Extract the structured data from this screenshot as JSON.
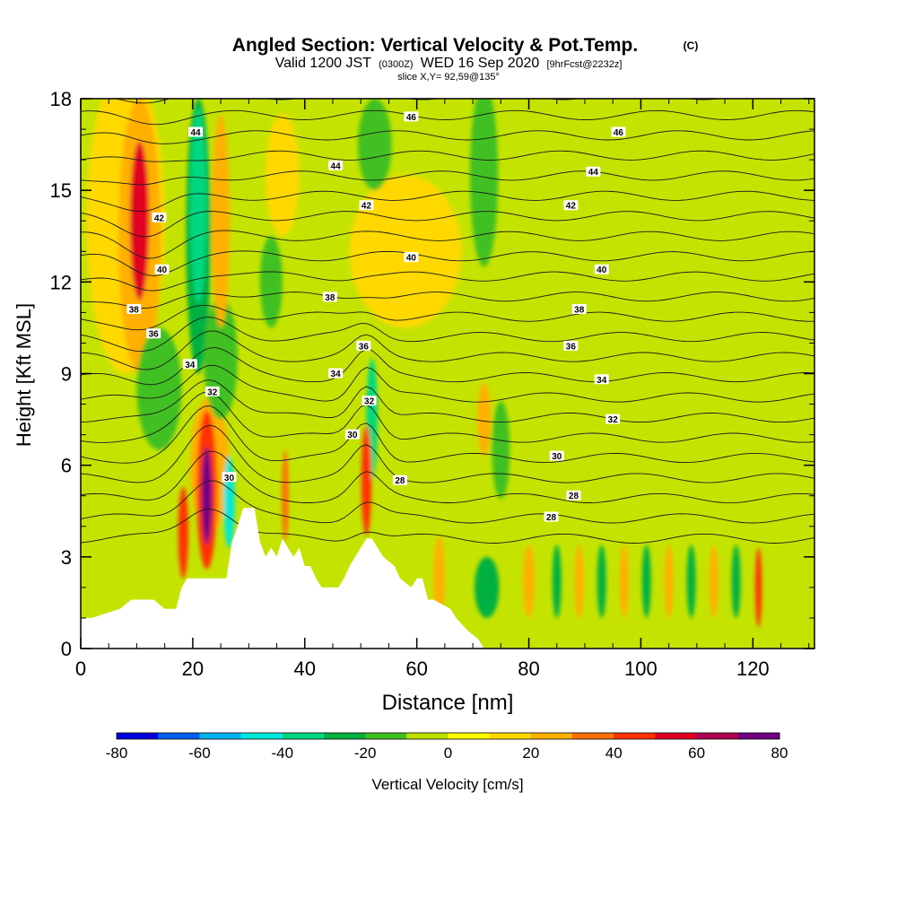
{
  "chart_data": {
    "type": "heatmap",
    "title": "Angled Section: Vertical Velocity & Pot.Temp.",
    "title_unit": "(C)",
    "subtitle_parts": [
      "Valid 1200 JST",
      "(0300Z)",
      "WED 16 Sep 2020",
      "[9hrFcst@2232z]"
    ],
    "subtitle2": "slice X,Y= 92,59@135°",
    "xlabel": "Distance [nm]",
    "ylabel": "Height [Kft MSL]",
    "xlim": [
      0,
      131
    ],
    "ylim": [
      0,
      18
    ],
    "x_ticks": [
      0,
      20,
      40,
      60,
      80,
      100,
      120
    ],
    "y_ticks": [
      0,
      3,
      6,
      9,
      12,
      15,
      18
    ],
    "colorbar": {
      "label": "Vertical Velocity [cm/s]",
      "tick_labels": [
        "-80",
        "-60",
        "-40",
        "-20",
        "0",
        "20",
        "40",
        "60",
        "80"
      ],
      "levels": [
        -80,
        -70,
        -60,
        -50,
        -40,
        -30,
        -20,
        -10,
        0,
        10,
        20,
        30,
        40,
        50,
        60,
        70,
        80
      ],
      "colors": [
        "#0000e0",
        "#0060f0",
        "#00b0f0",
        "#00e8d8",
        "#00d880",
        "#00b040",
        "#40c020",
        "#c0e000",
        "#ffff00",
        "#ffd800",
        "#ffb000",
        "#ff7000",
        "#ff3000",
        "#e00020",
        "#b00050",
        "#700080"
      ]
    },
    "background_color": "#c4e400",
    "terrain": [
      [
        0,
        1
      ],
      [
        2,
        1
      ],
      [
        7,
        1.3
      ],
      [
        9,
        1.6
      ],
      [
        13,
        1.6
      ],
      [
        15,
        1.3
      ],
      [
        17,
        1.3
      ],
      [
        18,
        2
      ],
      [
        19,
        2.3
      ],
      [
        22,
        2.3
      ],
      [
        26,
        2.3
      ],
      [
        27,
        3.5
      ],
      [
        28,
        4
      ],
      [
        29,
        4.6
      ],
      [
        31,
        4.6
      ],
      [
        32,
        3.5
      ],
      [
        33,
        3
      ],
      [
        34,
        3.3
      ],
      [
        35,
        3
      ],
      [
        36,
        3.6
      ],
      [
        37,
        3.3
      ],
      [
        38,
        3
      ],
      [
        39,
        3.3
      ],
      [
        40,
        2.7
      ],
      [
        41,
        2.7
      ],
      [
        42,
        2.3
      ],
      [
        43,
        2
      ],
      [
        44,
        2
      ],
      [
        46,
        2
      ],
      [
        47,
        2.3
      ],
      [
        48,
        2.7
      ],
      [
        49,
        3
      ],
      [
        50,
        3.3
      ],
      [
        51,
        3.6
      ],
      [
        52,
        3.6
      ],
      [
        53,
        3.3
      ],
      [
        54,
        3
      ],
      [
        56,
        2.7
      ],
      [
        57,
        2.3
      ],
      [
        59,
        2
      ],
      [
        60,
        2.3
      ],
      [
        61,
        2.3
      ],
      [
        62,
        1.6
      ],
      [
        63,
        1.6
      ],
      [
        66,
        1.3
      ],
      [
        67,
        1
      ],
      [
        69,
        0.6
      ],
      [
        71,
        0.3
      ],
      [
        72,
        0
      ]
    ],
    "features": [
      {
        "x": 10.5,
        "y": 14,
        "rx": 1.7,
        "ry": 2.6,
        "v": 50
      },
      {
        "x": 10.5,
        "y": 13.5,
        "rx": 3.8,
        "ry": 4.5,
        "v": 28
      },
      {
        "x": 8,
        "y": 14,
        "rx": 7,
        "ry": 5,
        "v": 12
      },
      {
        "x": 21,
        "y": 14.5,
        "rx": 1.5,
        "ry": 3.2,
        "v": -40
      },
      {
        "x": 21,
        "y": 13.5,
        "rx": 2.2,
        "ry": 4.5,
        "v": -22
      },
      {
        "x": 25,
        "y": 14,
        "rx": 1.6,
        "ry": 3.5,
        "v": 25
      },
      {
        "x": 22.5,
        "y": 5,
        "rx": 0.9,
        "ry": 1.6,
        "v": 70
      },
      {
        "x": 22.5,
        "y": 5.2,
        "rx": 1.8,
        "ry": 2.6,
        "v": 45
      },
      {
        "x": 23,
        "y": 6,
        "rx": 3.5,
        "ry": 2.2,
        "v": 25
      },
      {
        "x": 18.3,
        "y": 3.8,
        "rx": 0.9,
        "ry": 1.5,
        "v": 45
      },
      {
        "x": 26.5,
        "y": 4.8,
        "rx": 1,
        "ry": 1.5,
        "v": -45
      },
      {
        "x": 51,
        "y": 5.5,
        "rx": 0.9,
        "ry": 1.8,
        "v": 45
      },
      {
        "x": 52,
        "y": 7.5,
        "rx": 1,
        "ry": 2,
        "v": -40
      },
      {
        "x": 36.5,
        "y": 5,
        "rx": 0.6,
        "ry": 1.5,
        "v": 35
      },
      {
        "x": 14,
        "y": 8.5,
        "rx": 4,
        "ry": 2,
        "v": -15
      },
      {
        "x": 25,
        "y": 9.5,
        "rx": 3,
        "ry": 2,
        "v": -12
      },
      {
        "x": 34,
        "y": 12,
        "rx": 2,
        "ry": 1.5,
        "v": -15
      },
      {
        "x": 72.5,
        "y": 2,
        "rx": 2.2,
        "ry": 1,
        "v": -25
      },
      {
        "x": 75,
        "y": 6.5,
        "rx": 1.6,
        "ry": 1.6,
        "v": -12
      },
      {
        "x": 72,
        "y": 7.5,
        "rx": 1.2,
        "ry": 1.2,
        "v": 22
      },
      {
        "x": 58,
        "y": 13,
        "rx": 10,
        "ry": 2.5,
        "v": 12
      },
      {
        "x": 72,
        "y": 15.5,
        "rx": 2.5,
        "ry": 3,
        "v": -12
      },
      {
        "x": 52.5,
        "y": 16.5,
        "rx": 3,
        "ry": 1.5,
        "v": -15
      },
      {
        "x": 36,
        "y": 15.5,
        "rx": 3,
        "ry": 2,
        "v": 15
      },
      {
        "x": 85,
        "y": 2.2,
        "rx": 0.8,
        "ry": 1.2,
        "v": -22
      },
      {
        "x": 89,
        "y": 2.2,
        "rx": 0.8,
        "ry": 1.2,
        "v": 22
      },
      {
        "x": 93,
        "y": 2.2,
        "rx": 0.8,
        "ry": 1.2,
        "v": -22
      },
      {
        "x": 97,
        "y": 2.2,
        "rx": 0.8,
        "ry": 1.2,
        "v": 22
      },
      {
        "x": 101,
        "y": 2.2,
        "rx": 0.8,
        "ry": 1.2,
        "v": -22
      },
      {
        "x": 105,
        "y": 2.2,
        "rx": 0.8,
        "ry": 1.2,
        "v": 22
      },
      {
        "x": 109,
        "y": 2.2,
        "rx": 0.8,
        "ry": 1.2,
        "v": -22
      },
      {
        "x": 113,
        "y": 2.2,
        "rx": 0.8,
        "ry": 1.2,
        "v": 22
      },
      {
        "x": 117,
        "y": 2.2,
        "rx": 0.8,
        "ry": 1.2,
        "v": -22
      },
      {
        "x": 121,
        "y": 2,
        "rx": 0.6,
        "ry": 1.3,
        "v": 45
      },
      {
        "x": 64,
        "y": 2.3,
        "rx": 1,
        "ry": 1.4,
        "v": 22
      },
      {
        "x": 80,
        "y": 2.2,
        "rx": 1,
        "ry": 1.2,
        "v": 22
      }
    ],
    "isentrope_levels": [
      24,
      25,
      26,
      27,
      28,
      29,
      30,
      31,
      32,
      33,
      34,
      35,
      36,
      37,
      38,
      39,
      40,
      41,
      42,
      43,
      44,
      45,
      46,
      47
    ],
    "contour_labels": [
      {
        "text": "44",
        "x": 20.5,
        "y": 16.9
      },
      {
        "text": "46",
        "x": 59,
        "y": 17.4
      },
      {
        "text": "46",
        "x": 96,
        "y": 16.9
      },
      {
        "text": "44",
        "x": 45.5,
        "y": 15.8
      },
      {
        "text": "44",
        "x": 91.5,
        "y": 15.6
      },
      {
        "text": "42",
        "x": 14,
        "y": 14.1
      },
      {
        "text": "42",
        "x": 51,
        "y": 14.5
      },
      {
        "text": "42",
        "x": 87.5,
        "y": 14.5
      },
      {
        "text": "40",
        "x": 14.5,
        "y": 12.4
      },
      {
        "text": "40",
        "x": 59,
        "y": 12.8
      },
      {
        "text": "40",
        "x": 93,
        "y": 12.4
      },
      {
        "text": "38",
        "x": 9.5,
        "y": 11.1
      },
      {
        "text": "38",
        "x": 44.5,
        "y": 11.5
      },
      {
        "text": "38",
        "x": 89,
        "y": 11.1
      },
      {
        "text": "36",
        "x": 13,
        "y": 10.3
      },
      {
        "text": "36",
        "x": 50.5,
        "y": 9.9
      },
      {
        "text": "36",
        "x": 87.5,
        "y": 9.9
      },
      {
        "text": "34",
        "x": 19.5,
        "y": 9.3
      },
      {
        "text": "34",
        "x": 45.5,
        "y": 9
      },
      {
        "text": "34",
        "x": 93,
        "y": 8.8
      },
      {
        "text": "32",
        "x": 23.5,
        "y": 8.4
      },
      {
        "text": "32",
        "x": 51.5,
        "y": 8.1
      },
      {
        "text": "32",
        "x": 95,
        "y": 7.5
      },
      {
        "text": "30",
        "x": 48.5,
        "y": 7
      },
      {
        "text": "30",
        "x": 85,
        "y": 6.3
      },
      {
        "text": "30",
        "x": 26.5,
        "y": 5.6
      },
      {
        "text": "28",
        "x": 57,
        "y": 5.5
      },
      {
        "text": "28",
        "x": 88,
        "y": 5
      },
      {
        "text": "28",
        "x": 84,
        "y": 4.3
      }
    ]
  }
}
